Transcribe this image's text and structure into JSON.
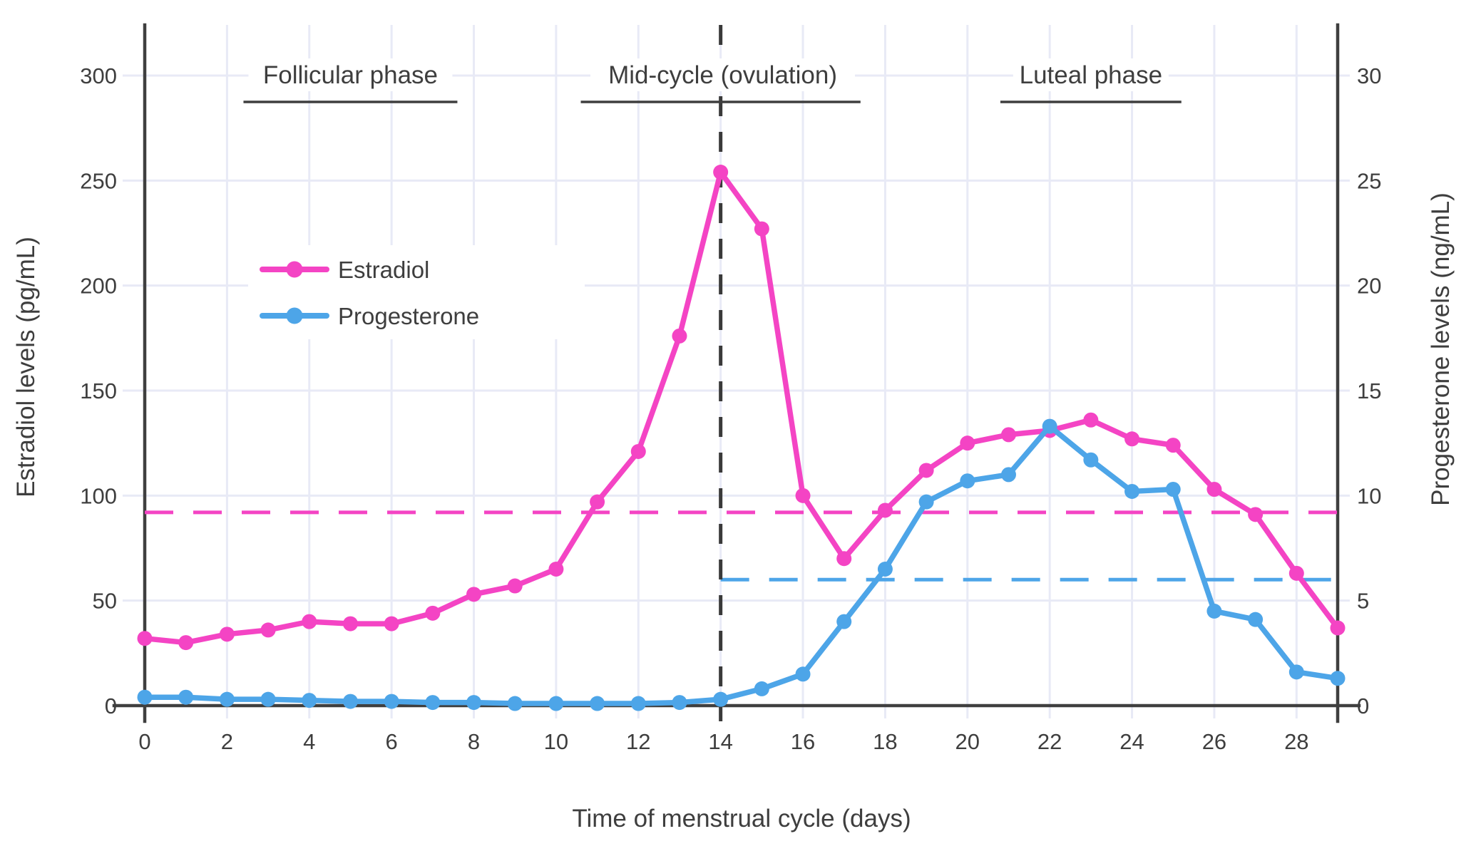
{
  "chart_data": {
    "type": "line",
    "title": "",
    "xlabel": "Time of menstrual cycle (days)",
    "ylabel_left": "Estradiol levels (pg/mL)",
    "ylabel_right": "Progesterone levels (ng/mL)",
    "xlim": [
      0,
      29
    ],
    "ylim_left": [
      0,
      300
    ],
    "ylim_right": [
      0,
      30
    ],
    "x_ticks": [
      0,
      2,
      4,
      6,
      8,
      10,
      12,
      14,
      16,
      18,
      20,
      22,
      24,
      26,
      28
    ],
    "y_ticks_left": [
      0,
      50,
      100,
      150,
      200,
      250,
      300
    ],
    "y_ticks_right": [
      0,
      5,
      10,
      15,
      20,
      25,
      30
    ],
    "grid": true,
    "x": [
      0,
      1,
      2,
      3,
      4,
      5,
      6,
      7,
      8,
      9,
      10,
      11,
      12,
      13,
      14,
      15,
      16,
      17,
      18,
      19,
      20,
      21,
      22,
      23,
      24,
      25,
      26,
      27,
      28,
      29
    ],
    "series": [
      {
        "name": "Estradiol",
        "axis": "left",
        "color": "#f444c4",
        "values": [
          32,
          30,
          34,
          36,
          40,
          39,
          39,
          44,
          53,
          57,
          65,
          97,
          121,
          176,
          254,
          227,
          100,
          70,
          93,
          112,
          125,
          129,
          131,
          136,
          127,
          124,
          103,
          91,
          63,
          37
        ]
      },
      {
        "name": "Progesterone",
        "axis": "right",
        "color": "#4da5e8",
        "values": [
          0.4,
          0.4,
          0.3,
          0.3,
          0.25,
          0.2,
          0.2,
          0.15,
          0.15,
          0.1,
          0.1,
          0.1,
          0.1,
          0.15,
          0.3,
          0.8,
          1.5,
          4.0,
          6.5,
          9.7,
          10.7,
          11.0,
          13.3,
          11.7,
          10.2,
          10.3,
          4.5,
          4.1,
          1.6,
          1.3
        ]
      }
    ],
    "reference_lines": [
      {
        "name": "estradiol-threshold",
        "orientation": "horizontal",
        "axis": "left",
        "value": 92,
        "x_range": [
          0,
          29
        ],
        "color": "#f444c4",
        "style": "dashed"
      },
      {
        "name": "progesterone-threshold",
        "orientation": "horizontal",
        "axis": "right",
        "value": 6,
        "x_range": [
          14,
          29
        ],
        "color": "#4da5e8",
        "style": "dashed"
      },
      {
        "name": "ovulation-day",
        "orientation": "vertical",
        "value": 14,
        "color": "#3a3a3a",
        "style": "dashed"
      }
    ],
    "annotations": [
      {
        "label": "Follicular phase",
        "center_day": 5.0,
        "underline_days": [
          2.4,
          7.6
        ]
      },
      {
        "label": "Mid-cycle (ovulation)",
        "center_day": 14.05,
        "underline_days": [
          10.6,
          17.4
        ]
      },
      {
        "label": "Luteal phase",
        "center_day": 23.0,
        "underline_days": [
          20.8,
          25.2
        ]
      }
    ],
    "legend": {
      "position": "upper-left-inside",
      "items": [
        "Estradiol",
        "Progesterone"
      ]
    }
  },
  "colors": {
    "estradiol": "#f444c4",
    "progesterone": "#4da5e8",
    "text": "#3e3e3e",
    "axis": "#3f3f3f",
    "grid": "#e8eaf6",
    "dashed_vertical": "#3a3a3a",
    "background": "#ffffff"
  }
}
